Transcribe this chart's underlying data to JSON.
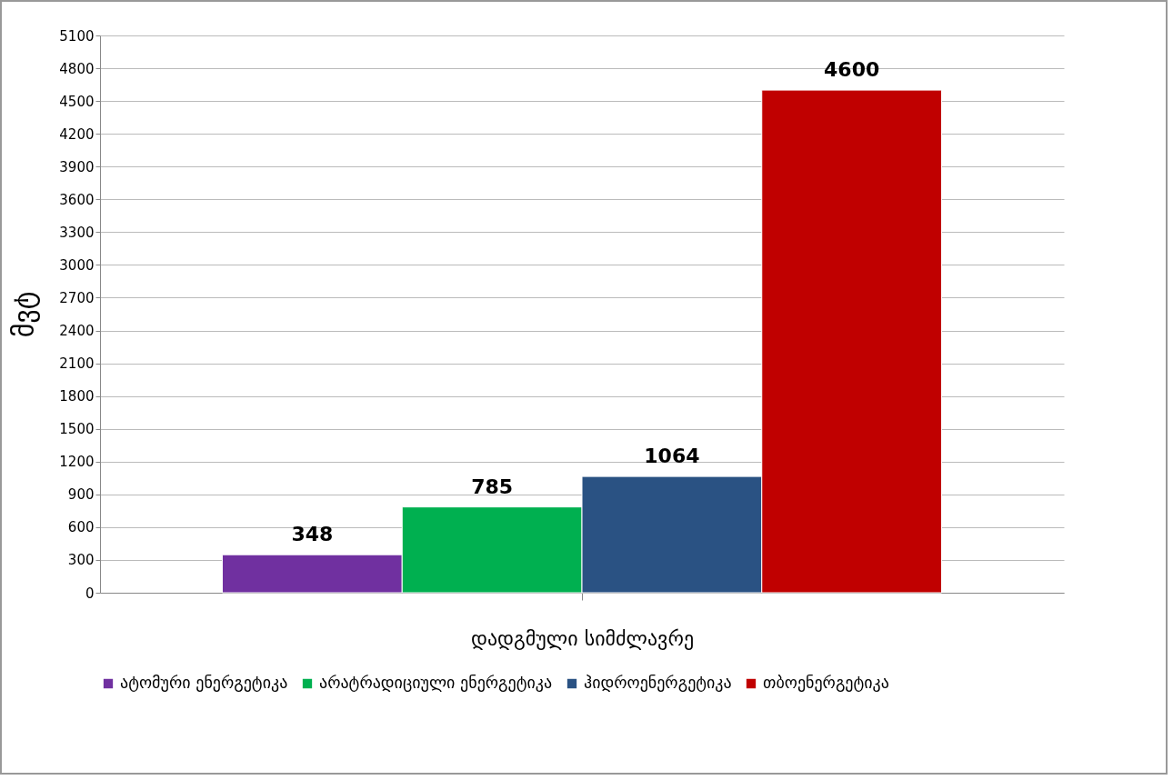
{
  "chart_data": {
    "type": "bar",
    "xlabel": "დადგმული სიმძლავრე",
    "ylabel": "მვტ",
    "categories": [
      null
    ],
    "series": [
      {
        "name": "ატომური ენერგეტიკა",
        "color": "#7030a0",
        "values": [
          348
        ]
      },
      {
        "name": "არატრადიციული ენერგეტიკა",
        "color": "#00b050",
        "values": [
          785
        ]
      },
      {
        "name": "ჰიდროენერგეტიკა",
        "color": "#2a5283",
        "values": [
          1064
        ]
      },
      {
        "name": "თბოენერგეტიკა",
        "color": "#c00000",
        "values": [
          4600
        ]
      }
    ],
    "ylim": [
      0,
      5100
    ],
    "yticks": [
      0,
      300,
      600,
      900,
      1200,
      1500,
      1800,
      2100,
      2400,
      2700,
      3000,
      3300,
      3600,
      3900,
      4200,
      4500,
      4800,
      5100
    ],
    "grid": "y",
    "data_labels": true,
    "legend": "bottom"
  }
}
